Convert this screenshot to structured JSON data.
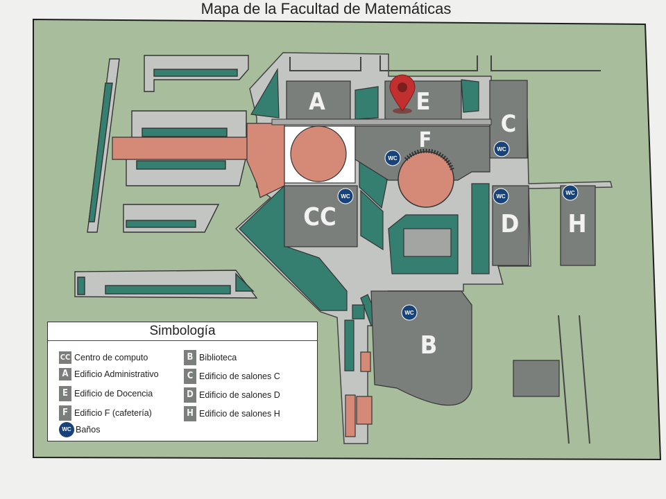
{
  "map": {
    "title": "Mapa de la Facultad de Matemáticas",
    "buildings": {
      "A": "A",
      "E": "E",
      "C": "C",
      "F": "F",
      "D": "D",
      "H": "H",
      "CC": "CC",
      "B": "B"
    },
    "wc_label": "WC",
    "location_marker": "map-pin-icon",
    "colors": {
      "background": "#a7bd9c",
      "building": "#7b7f7c",
      "walkway": "#c3c5c2",
      "green": "#357f71",
      "plaza": "#d48a77",
      "wc": "#17427a",
      "pin": "#c22f2f"
    }
  },
  "legend": {
    "title": "Simbología",
    "items": [
      {
        "symbol": "CC",
        "label": "Centro de computo"
      },
      {
        "symbol": "A",
        "label": "Edificio Administrativo"
      },
      {
        "symbol": "E",
        "label": "Edificio de Docencia"
      },
      {
        "symbol": "F",
        "label": "Edificio F (cafetería)"
      },
      {
        "symbol": "WC",
        "label": "Baños"
      },
      {
        "symbol": "B",
        "label": "Biblioteca"
      },
      {
        "symbol": "C",
        "label": "Edificio de salones C"
      },
      {
        "symbol": "D",
        "label": "Edificio de salones D"
      },
      {
        "symbol": "H",
        "label": "Edificio de salones H"
      }
    ]
  }
}
